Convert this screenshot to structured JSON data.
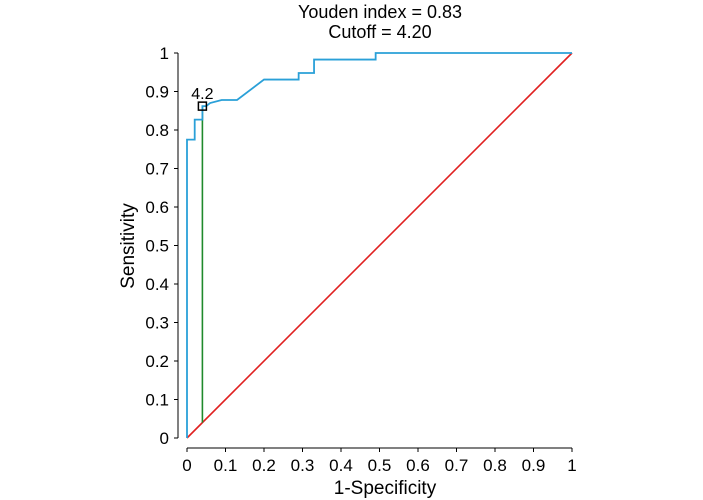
{
  "chart_data": {
    "type": "line",
    "title_lines": [
      "Youden index  = 0.83",
      "Cutoff = 4.20"
    ],
    "xlabel": "1-Specificity",
    "ylabel": "Sensitivity",
    "xlim": [
      0,
      1
    ],
    "ylim": [
      0,
      1
    ],
    "x_ticks": [
      "0",
      "0.1",
      "0.2",
      "0.3",
      "0.4",
      "0.5",
      "0.6",
      "0.7",
      "0.8",
      "0.9",
      "1"
    ],
    "y_ticks": [
      "0",
      "0.1",
      "0.2",
      "0.3",
      "0.4",
      "0.5",
      "0.6",
      "0.7",
      "0.8",
      "0.9",
      "1"
    ],
    "grid": false,
    "series": [
      {
        "color": "#2aa0d8",
        "points": [
          [
            0,
            0
          ],
          [
            0,
            0.775
          ],
          [
            0.02,
            0.775
          ],
          [
            0.02,
            0.827
          ],
          [
            0.04,
            0.827
          ],
          [
            0.04,
            0.862
          ],
          [
            0.05,
            0.862
          ],
          [
            0.06,
            0.87
          ],
          [
            0.09,
            0.878
          ],
          [
            0.13,
            0.878
          ],
          [
            0.2,
            0.931
          ],
          [
            0.29,
            0.931
          ],
          [
            0.29,
            0.948
          ],
          [
            0.33,
            0.948
          ],
          [
            0.33,
            0.983
          ],
          [
            0.49,
            0.983
          ],
          [
            0.49,
            1
          ],
          [
            1,
            1
          ]
        ]
      },
      {
        "color": "#e02020",
        "points": [
          [
            0,
            0
          ],
          [
            1,
            1
          ]
        ]
      }
    ],
    "youden_line": {
      "color": "#1f8a2c",
      "x": 0.04,
      "y_from": 0.04,
      "y_to": 0.862
    },
    "cutoff_marker": {
      "x": 0.04,
      "y": 0.862,
      "label": "4.2"
    }
  }
}
